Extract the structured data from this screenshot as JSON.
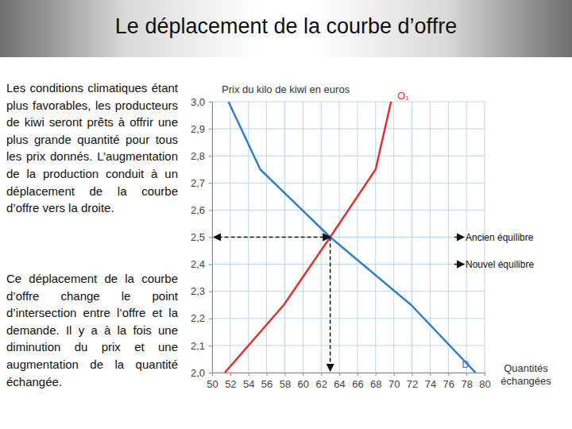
{
  "chart_data": {
    "type": "line",
    "title": "Le déplacement de la courbe d’offre",
    "text_blocks": [
      "Les conditions climatiques étant plus favorables, les producteurs de kiwi seront prêts à offrir une plus grande quantité pour tous les prix donnés. L’augmentation de la production conduit à un déplacement de la courbe d’offre vers la droite.",
      "Ce déplacement de la courbe d’offre change le point d’intersection entre l’offre et la demande. Il y a à la fois une diminution du prix et une augmentation de la quantité échangée."
    ],
    "y_label": "Prix du kilo de kiwi en euros",
    "x_label": "Quantités échangées",
    "xlim": [
      50,
      80
    ],
    "ylim": [
      2.0,
      3.0
    ],
    "xticks": [
      50,
      52,
      54,
      56,
      58,
      60,
      62,
      64,
      66,
      68,
      70,
      72,
      74,
      76,
      78,
      80
    ],
    "yticks": [
      {
        "value": 2.0,
        "label": "2,0"
      },
      {
        "value": 2.1,
        "label": "2,1"
      },
      {
        "value": 2.2,
        "label": "2,2"
      },
      {
        "value": 2.3,
        "label": "2,3"
      },
      {
        "value": 2.4,
        "label": "2,4"
      },
      {
        "value": 2.5,
        "label": "2,5"
      },
      {
        "value": 2.6,
        "label": "2,6"
      },
      {
        "value": 2.7,
        "label": "2,7"
      },
      {
        "value": 2.8,
        "label": "2,8"
      },
      {
        "value": 2.9,
        "label": "2,9"
      },
      {
        "value": 3.0,
        "label": "3,0"
      }
    ],
    "grid": true,
    "series": [
      {
        "name": "O₁",
        "color": "#e0312f",
        "x": [
          51.4,
          57.9,
          63,
          68.0,
          69.7
        ],
        "values": [
          2.0,
          2.25,
          2.5,
          2.75,
          3.0
        ]
      },
      {
        "name": "D",
        "color": "#2e7fd0",
        "x": [
          51.8,
          55.3,
          63,
          71.9,
          79.0
        ],
        "values": [
          3.0,
          2.75,
          2.5,
          2.25,
          2.0
        ]
      }
    ],
    "equilibrium": {
      "x": 63,
      "y": 2.5
    },
    "annotations": [
      {
        "text": "Ancien équilibre",
        "y": 2.5
      },
      {
        "text": "Nouvel équilibre",
        "y": 2.4
      }
    ]
  }
}
